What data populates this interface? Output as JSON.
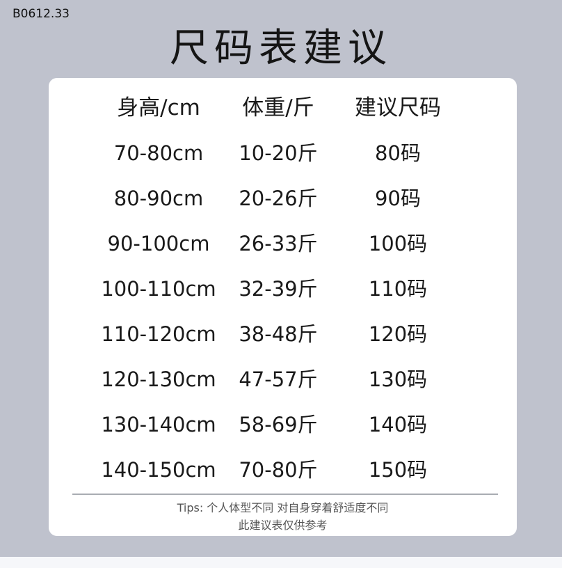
{
  "product_code": "B0612.33",
  "title": "尺码表建议",
  "table": {
    "headers": [
      "身高/cm",
      "体重/斤",
      "建议尺码"
    ],
    "rows": [
      [
        "70-80cm",
        "10-20斤",
        "80码"
      ],
      [
        "80-90cm",
        "20-26斤",
        "90码"
      ],
      [
        "90-100cm",
        "26-33斤",
        "100码"
      ],
      [
        "100-110cm",
        "32-39斤",
        "110码"
      ],
      [
        "110-120cm",
        "38-48斤",
        "120码"
      ],
      [
        "120-130cm",
        "47-57斤",
        "130码"
      ],
      [
        "130-140cm",
        "58-69斤",
        "140码"
      ],
      [
        "140-150cm",
        "70-80斤",
        "150码"
      ]
    ]
  },
  "tips": {
    "line1": "Tips: 个人体型不同 对自身穿着舒适度不同",
    "line2": "此建议表仅供参考"
  }
}
